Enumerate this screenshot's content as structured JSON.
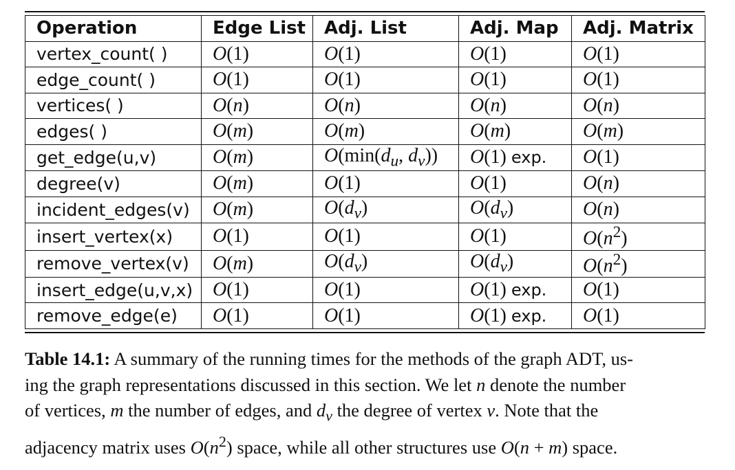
{
  "table": {
    "headers": [
      "Operation",
      "Edge List",
      "Adj. List",
      "Adj. Map",
      "Adj. Matrix"
    ],
    "rows": [
      [
        "vertex_count( )",
        "O(1)",
        "O(1)",
        "O(1)",
        "O(1)"
      ],
      [
        "edge_count( )",
        "O(1)",
        "O(1)",
        "O(1)",
        "O(1)"
      ],
      [
        "vertices( )",
        "O(n)",
        "O(n)",
        "O(n)",
        "O(n)"
      ],
      [
        "edges( )",
        "O(m)",
        "O(m)",
        "O(m)",
        "O(m)"
      ],
      [
        "get_edge(u,v)",
        "O(m)",
        "O(min(du, dv))",
        "O(1) exp.",
        "O(1)"
      ],
      [
        "degree(v)",
        "O(m)",
        "O(1)",
        "O(1)",
        "O(n)"
      ],
      [
        "incident_edges(v)",
        "O(m)",
        "O(dv)",
        "O(dv)",
        "O(n)"
      ],
      [
        "insert_vertex(x)",
        "O(1)",
        "O(1)",
        "O(1)",
        "O(n2)"
      ],
      [
        "remove_vertex(v)",
        "O(m)",
        "O(dv)",
        "O(dv)",
        "O(n2)"
      ],
      [
        "insert_edge(u,v,x)",
        "O(1)",
        "O(1)",
        "O(1) exp.",
        "O(1)"
      ],
      [
        "remove_edge(e)",
        "O(1)",
        "O(1)",
        "O(1) exp.",
        "O(1)"
      ]
    ]
  },
  "caption": {
    "label": "Table 14.1:",
    "lines": [
      " A summary of the running times for the methods of the graph ADT, us-",
      "ing the graph representations discussed in this section. We let n denote the number",
      "of vertices, m the number of edges, and dv the degree of vertex v. Note that the",
      "adjacency matrix uses O(n2) space, while all other structures use O(n + m) space."
    ]
  }
}
